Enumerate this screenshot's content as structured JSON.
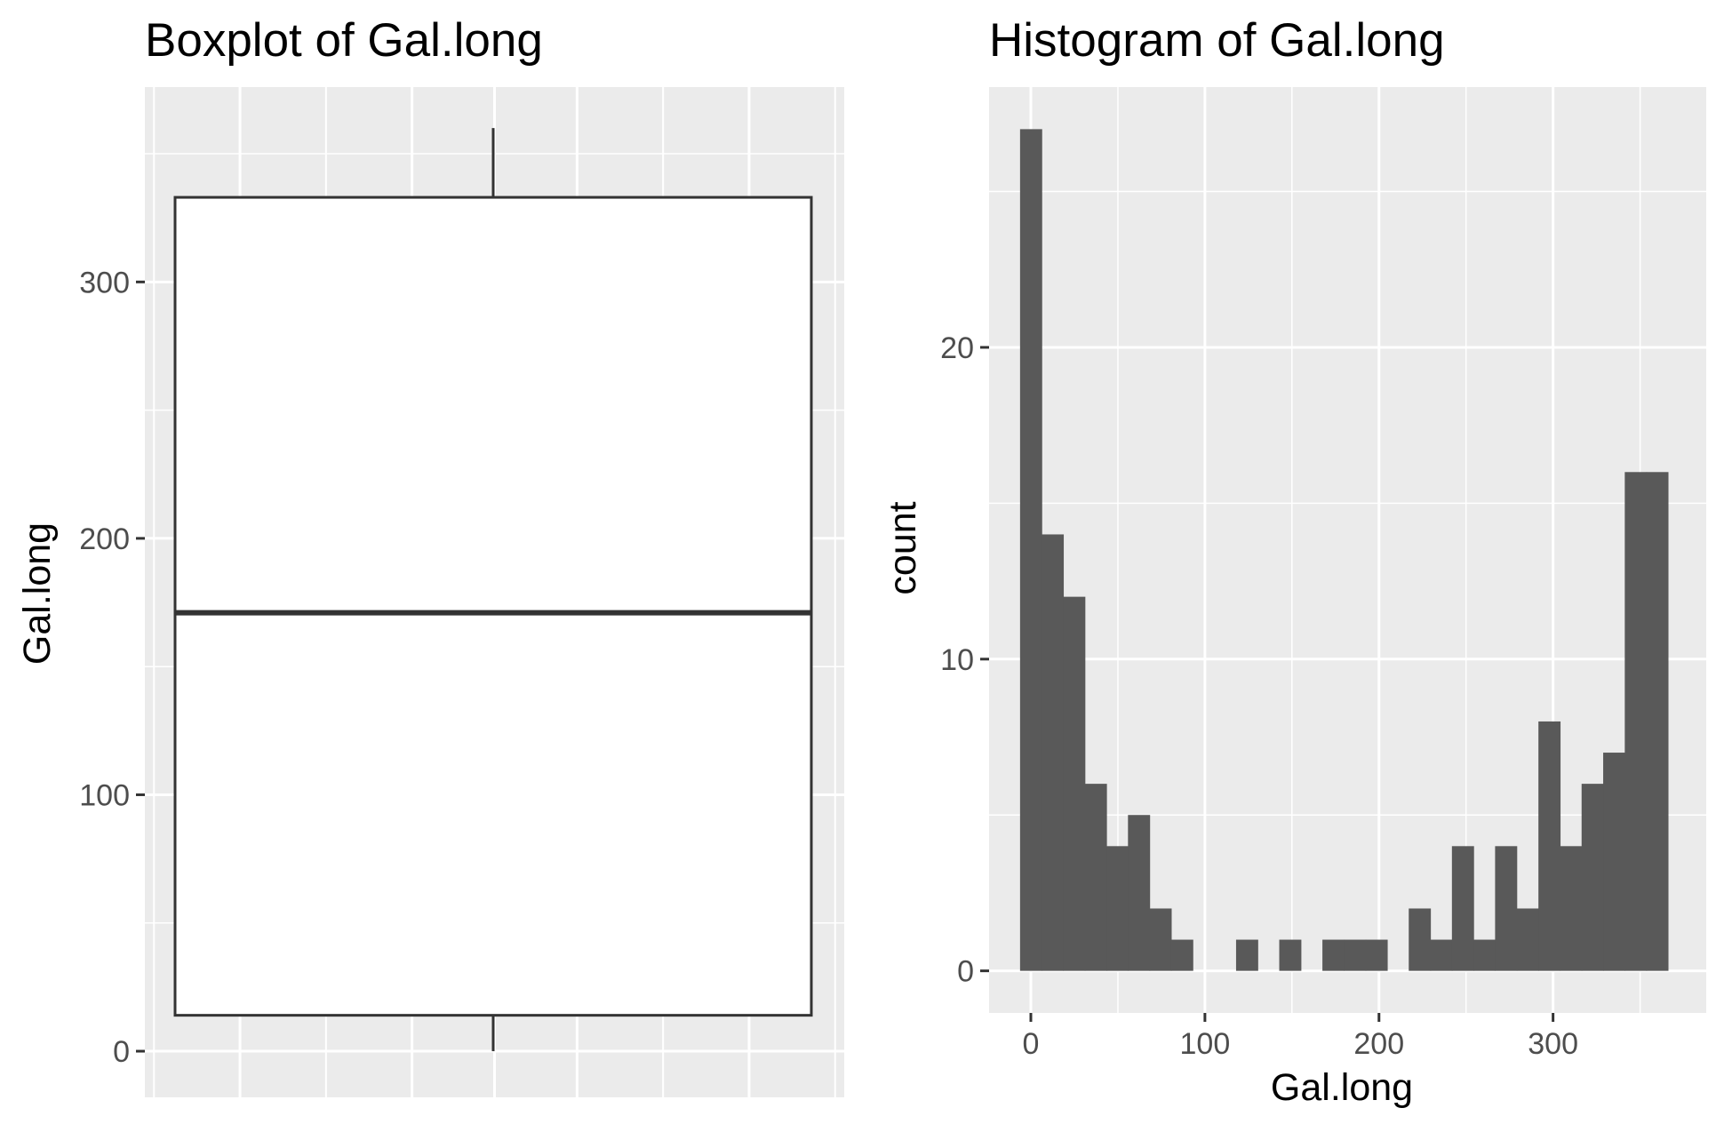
{
  "chart_data": [
    {
      "type": "boxplot",
      "title": "Boxplot of Gal.long",
      "xlabel": "",
      "ylabel": "Gal.long",
      "ylim": [
        -18,
        376
      ],
      "yticks": [
        0,
        100,
        200,
        300
      ],
      "grid": true,
      "box": {
        "min": 0,
        "q1": 14,
        "median": 171,
        "q3": 333,
        "max": 360
      },
      "colors": {
        "panel": "#ebebeb",
        "grid": "#ffffff",
        "box_fill": "#ffffff",
        "box_line": "#333333"
      }
    },
    {
      "type": "histogram",
      "title": "Histogram of Gal.long",
      "xlabel": "Gal.long",
      "ylabel": "count",
      "xlim": [
        -24,
        388
      ],
      "ylim": [
        -1.35,
        28.35
      ],
      "xticks": [
        0,
        100,
        200,
        300
      ],
      "yticks": [
        0,
        10,
        20
      ],
      "grid": true,
      "bin_width": 12.4,
      "bins": [
        {
          "x": 0,
          "count": 27
        },
        {
          "x": 12.4,
          "count": 14
        },
        {
          "x": 24.8,
          "count": 12
        },
        {
          "x": 37.2,
          "count": 6
        },
        {
          "x": 49.6,
          "count": 4
        },
        {
          "x": 62.0,
          "count": 5
        },
        {
          "x": 74.4,
          "count": 2
        },
        {
          "x": 86.8,
          "count": 1
        },
        {
          "x": 99.3,
          "count": 0
        },
        {
          "x": 111.7,
          "count": 0
        },
        {
          "x": 124.1,
          "count": 1
        },
        {
          "x": 136.5,
          "count": 0
        },
        {
          "x": 148.9,
          "count": 1
        },
        {
          "x": 161.3,
          "count": 0
        },
        {
          "x": 173.7,
          "count": 1
        },
        {
          "x": 186.1,
          "count": 1
        },
        {
          "x": 198.5,
          "count": 1
        },
        {
          "x": 210.9,
          "count": 0
        },
        {
          "x": 223.3,
          "count": 2
        },
        {
          "x": 235.7,
          "count": 1
        },
        {
          "x": 248.1,
          "count": 4
        },
        {
          "x": 260.5,
          "count": 1
        },
        {
          "x": 272.9,
          "count": 4
        },
        {
          "x": 285.4,
          "count": 2
        },
        {
          "x": 297.8,
          "count": 8
        },
        {
          "x": 310.2,
          "count": 4
        },
        {
          "x": 322.6,
          "count": 6
        },
        {
          "x": 335.0,
          "count": 7
        },
        {
          "x": 347.4,
          "count": 16
        },
        {
          "x": 359.8,
          "count": 16
        }
      ],
      "colors": {
        "panel": "#ebebeb",
        "grid": "#ffffff",
        "bar": "#595959"
      }
    }
  ]
}
